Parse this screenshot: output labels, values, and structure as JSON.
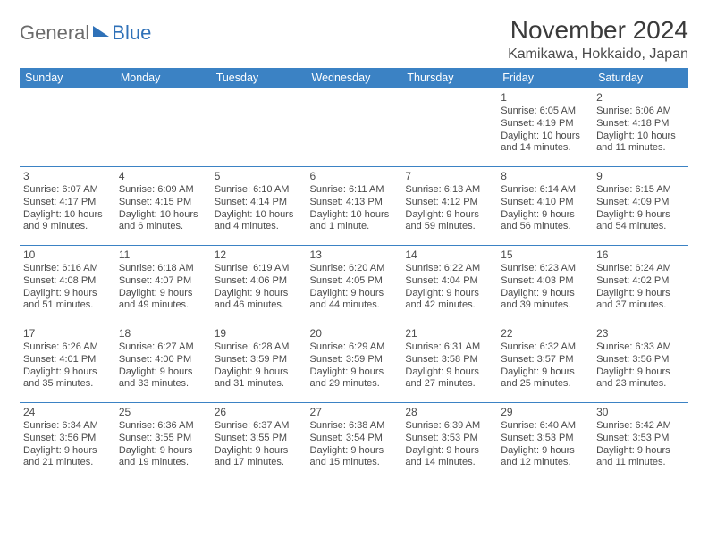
{
  "brand": {
    "general": "General",
    "blue": "Blue"
  },
  "title": "November 2024",
  "location": "Kamikawa, Hokkaido, Japan",
  "colors": {
    "header_bg": "#3b82c4",
    "header_text": "#ffffff",
    "cell_border": "#3b82c4",
    "body_text": "#4a4a4a",
    "brand_blue": "#2f71b8",
    "brand_gray": "#6b6b6b",
    "background": "#ffffff"
  },
  "day_headers": [
    "Sunday",
    "Monday",
    "Tuesday",
    "Wednesday",
    "Thursday",
    "Friday",
    "Saturday"
  ],
  "weeks": [
    [
      null,
      null,
      null,
      null,
      null,
      {
        "n": "1",
        "sr": "Sunrise: 6:05 AM",
        "ss": "Sunset: 4:19 PM",
        "dl": "Daylight: 10 hours and 14 minutes."
      },
      {
        "n": "2",
        "sr": "Sunrise: 6:06 AM",
        "ss": "Sunset: 4:18 PM",
        "dl": "Daylight: 10 hours and 11 minutes."
      }
    ],
    [
      {
        "n": "3",
        "sr": "Sunrise: 6:07 AM",
        "ss": "Sunset: 4:17 PM",
        "dl": "Daylight: 10 hours and 9 minutes."
      },
      {
        "n": "4",
        "sr": "Sunrise: 6:09 AM",
        "ss": "Sunset: 4:15 PM",
        "dl": "Daylight: 10 hours and 6 minutes."
      },
      {
        "n": "5",
        "sr": "Sunrise: 6:10 AM",
        "ss": "Sunset: 4:14 PM",
        "dl": "Daylight: 10 hours and 4 minutes."
      },
      {
        "n": "6",
        "sr": "Sunrise: 6:11 AM",
        "ss": "Sunset: 4:13 PM",
        "dl": "Daylight: 10 hours and 1 minute."
      },
      {
        "n": "7",
        "sr": "Sunrise: 6:13 AM",
        "ss": "Sunset: 4:12 PM",
        "dl": "Daylight: 9 hours and 59 minutes."
      },
      {
        "n": "8",
        "sr": "Sunrise: 6:14 AM",
        "ss": "Sunset: 4:10 PM",
        "dl": "Daylight: 9 hours and 56 minutes."
      },
      {
        "n": "9",
        "sr": "Sunrise: 6:15 AM",
        "ss": "Sunset: 4:09 PM",
        "dl": "Daylight: 9 hours and 54 minutes."
      }
    ],
    [
      {
        "n": "10",
        "sr": "Sunrise: 6:16 AM",
        "ss": "Sunset: 4:08 PM",
        "dl": "Daylight: 9 hours and 51 minutes."
      },
      {
        "n": "11",
        "sr": "Sunrise: 6:18 AM",
        "ss": "Sunset: 4:07 PM",
        "dl": "Daylight: 9 hours and 49 minutes."
      },
      {
        "n": "12",
        "sr": "Sunrise: 6:19 AM",
        "ss": "Sunset: 4:06 PM",
        "dl": "Daylight: 9 hours and 46 minutes."
      },
      {
        "n": "13",
        "sr": "Sunrise: 6:20 AM",
        "ss": "Sunset: 4:05 PM",
        "dl": "Daylight: 9 hours and 44 minutes."
      },
      {
        "n": "14",
        "sr": "Sunrise: 6:22 AM",
        "ss": "Sunset: 4:04 PM",
        "dl": "Daylight: 9 hours and 42 minutes."
      },
      {
        "n": "15",
        "sr": "Sunrise: 6:23 AM",
        "ss": "Sunset: 4:03 PM",
        "dl": "Daylight: 9 hours and 39 minutes."
      },
      {
        "n": "16",
        "sr": "Sunrise: 6:24 AM",
        "ss": "Sunset: 4:02 PM",
        "dl": "Daylight: 9 hours and 37 minutes."
      }
    ],
    [
      {
        "n": "17",
        "sr": "Sunrise: 6:26 AM",
        "ss": "Sunset: 4:01 PM",
        "dl": "Daylight: 9 hours and 35 minutes."
      },
      {
        "n": "18",
        "sr": "Sunrise: 6:27 AM",
        "ss": "Sunset: 4:00 PM",
        "dl": "Daylight: 9 hours and 33 minutes."
      },
      {
        "n": "19",
        "sr": "Sunrise: 6:28 AM",
        "ss": "Sunset: 3:59 PM",
        "dl": "Daylight: 9 hours and 31 minutes."
      },
      {
        "n": "20",
        "sr": "Sunrise: 6:29 AM",
        "ss": "Sunset: 3:59 PM",
        "dl": "Daylight: 9 hours and 29 minutes."
      },
      {
        "n": "21",
        "sr": "Sunrise: 6:31 AM",
        "ss": "Sunset: 3:58 PM",
        "dl": "Daylight: 9 hours and 27 minutes."
      },
      {
        "n": "22",
        "sr": "Sunrise: 6:32 AM",
        "ss": "Sunset: 3:57 PM",
        "dl": "Daylight: 9 hours and 25 minutes."
      },
      {
        "n": "23",
        "sr": "Sunrise: 6:33 AM",
        "ss": "Sunset: 3:56 PM",
        "dl": "Daylight: 9 hours and 23 minutes."
      }
    ],
    [
      {
        "n": "24",
        "sr": "Sunrise: 6:34 AM",
        "ss": "Sunset: 3:56 PM",
        "dl": "Daylight: 9 hours and 21 minutes."
      },
      {
        "n": "25",
        "sr": "Sunrise: 6:36 AM",
        "ss": "Sunset: 3:55 PM",
        "dl": "Daylight: 9 hours and 19 minutes."
      },
      {
        "n": "26",
        "sr": "Sunrise: 6:37 AM",
        "ss": "Sunset: 3:55 PM",
        "dl": "Daylight: 9 hours and 17 minutes."
      },
      {
        "n": "27",
        "sr": "Sunrise: 6:38 AM",
        "ss": "Sunset: 3:54 PM",
        "dl": "Daylight: 9 hours and 15 minutes."
      },
      {
        "n": "28",
        "sr": "Sunrise: 6:39 AM",
        "ss": "Sunset: 3:53 PM",
        "dl": "Daylight: 9 hours and 14 minutes."
      },
      {
        "n": "29",
        "sr": "Sunrise: 6:40 AM",
        "ss": "Sunset: 3:53 PM",
        "dl": "Daylight: 9 hours and 12 minutes."
      },
      {
        "n": "30",
        "sr": "Sunrise: 6:42 AM",
        "ss": "Sunset: 3:53 PM",
        "dl": "Daylight: 9 hours and 11 minutes."
      }
    ]
  ]
}
